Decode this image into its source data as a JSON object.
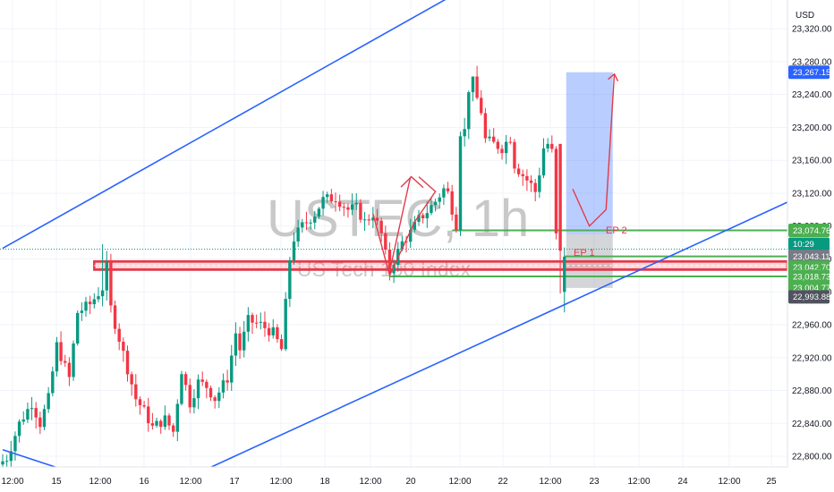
{
  "watermark": {
    "symbol": "USTEC, 1h",
    "name": "US Tech 100 Index"
  },
  "currency": "USD",
  "annotations": {
    "ep1": "EP 1",
    "ep2": "EP 2"
  },
  "price_tags": [
    {
      "label": "23,267.15",
      "price": 23267.15,
      "color": "#2962ff"
    },
    {
      "label": "23,074.76",
      "price": 23074.76,
      "color": "#4caf50"
    },
    {
      "label": "10:29",
      "price": 23058,
      "color": "#089981"
    },
    {
      "label": "23,043.11",
      "price": 23043.11,
      "color": "#787b86"
    },
    {
      "label": "23,042.70",
      "price": 23030,
      "color": "#4caf50"
    },
    {
      "label": "23,018.73",
      "price": 23018.73,
      "color": "#4caf50"
    },
    {
      "label": "23,004.77",
      "price": 23004.77,
      "color": "#4caf50"
    },
    {
      "label": "22,993.88",
      "price": 22993.88,
      "color": "#50535e"
    }
  ],
  "colors": {
    "up": "#089981",
    "down": "#f23645",
    "trend": "#2962ff",
    "hline": "#4caf50",
    "zone": "#f23645"
  },
  "chart_data": {
    "type": "candlestick",
    "symbol": "USTEC",
    "timeframe": "1h",
    "title": "US Tech 100 Index",
    "y_ticks": [
      22800,
      22840,
      22880,
      22920,
      22960,
      23000,
      23040,
      23080,
      23120,
      23160,
      23200,
      23240,
      23280,
      23320
    ],
    "y_tick_labels": [
      "22,800.00",
      "22,840.00",
      "22,880.00",
      "22,920.00",
      "22,960.00",
      "23,000.00",
      "23,040.00",
      "23,080.00",
      "23,120.00",
      "23,160.00",
      "23,200.00",
      "23,240.00",
      "23,280.00",
      "23,320.00"
    ],
    "ylim": [
      22787,
      23355
    ],
    "x_ticks": [
      "12:00",
      "15",
      "12:00",
      "16",
      "12:00",
      "17",
      "12:00",
      "18",
      "12:00",
      "20",
      "12:00",
      "22",
      "12:00",
      "23",
      "12:00",
      "24",
      "12:00",
      "25"
    ],
    "trend_lines_price": [
      {
        "from": [
          0,
          23053
        ],
        "to": [
          122,
          23400
        ]
      },
      {
        "from": [
          0,
          22808
        ],
        "to": [
          18,
          22778
        ]
      },
      {
        "from": [
          48,
          22782
        ],
        "to": [
          189,
          23110
        ]
      }
    ],
    "horizontal_lines": [
      23074.76,
      23043.11,
      23018.73,
      23004.77
    ],
    "zone": {
      "low": 23028,
      "high": 23036
    },
    "position": {
      "entry": 23070,
      "target": 23267.15,
      "stop": 23004.77
    },
    "candles": []
  }
}
